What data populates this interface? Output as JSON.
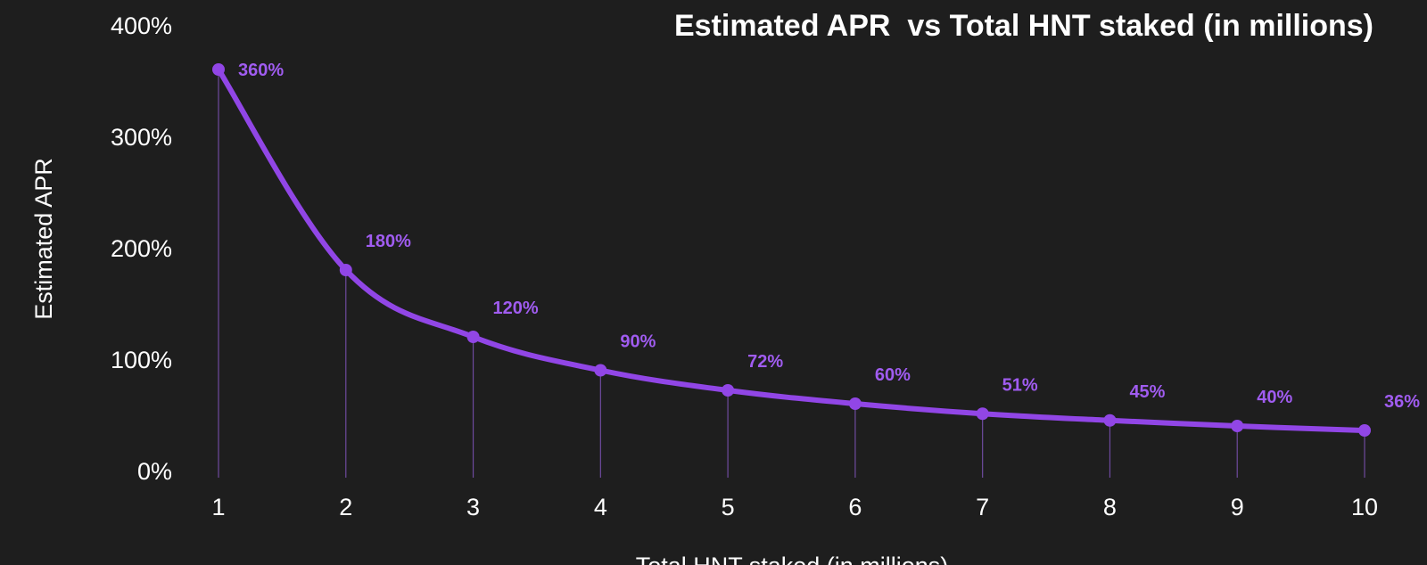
{
  "chart_data": {
    "type": "line",
    "title": "Estimated APR  vs Total HNT staked (in millions)",
    "xlabel": "Total HNT staked (in millions)",
    "ylabel": "Estimated APR",
    "x": [
      1,
      2,
      3,
      4,
      5,
      6,
      7,
      8,
      9,
      10
    ],
    "series": [
      {
        "values": [
          360,
          180,
          120,
          90,
          72,
          60,
          51,
          45,
          40,
          36
        ],
        "labels": [
          "360%",
          "180%",
          "120%",
          "90%",
          "72%",
          "60%",
          "51%",
          "45%",
          "40%",
          "36%"
        ]
      }
    ],
    "y_ticks": [
      0,
      100,
      200,
      300,
      400
    ],
    "y_tick_labels": [
      "0%",
      "100%",
      "200%",
      "300%",
      "400%"
    ],
    "x_tick_labels": [
      "1",
      "2",
      "3",
      "4",
      "5",
      "6",
      "7",
      "8",
      "9",
      "10"
    ],
    "xlim": [
      1,
      10
    ],
    "ylim": [
      0,
      400
    ],
    "grid": false,
    "drop_lines": true,
    "colors": {
      "background": "#1e1e1e",
      "line": "#9146e6",
      "label": "#a05cf0",
      "drop_line": "#6e4a9e",
      "text": "#ffffff"
    }
  }
}
